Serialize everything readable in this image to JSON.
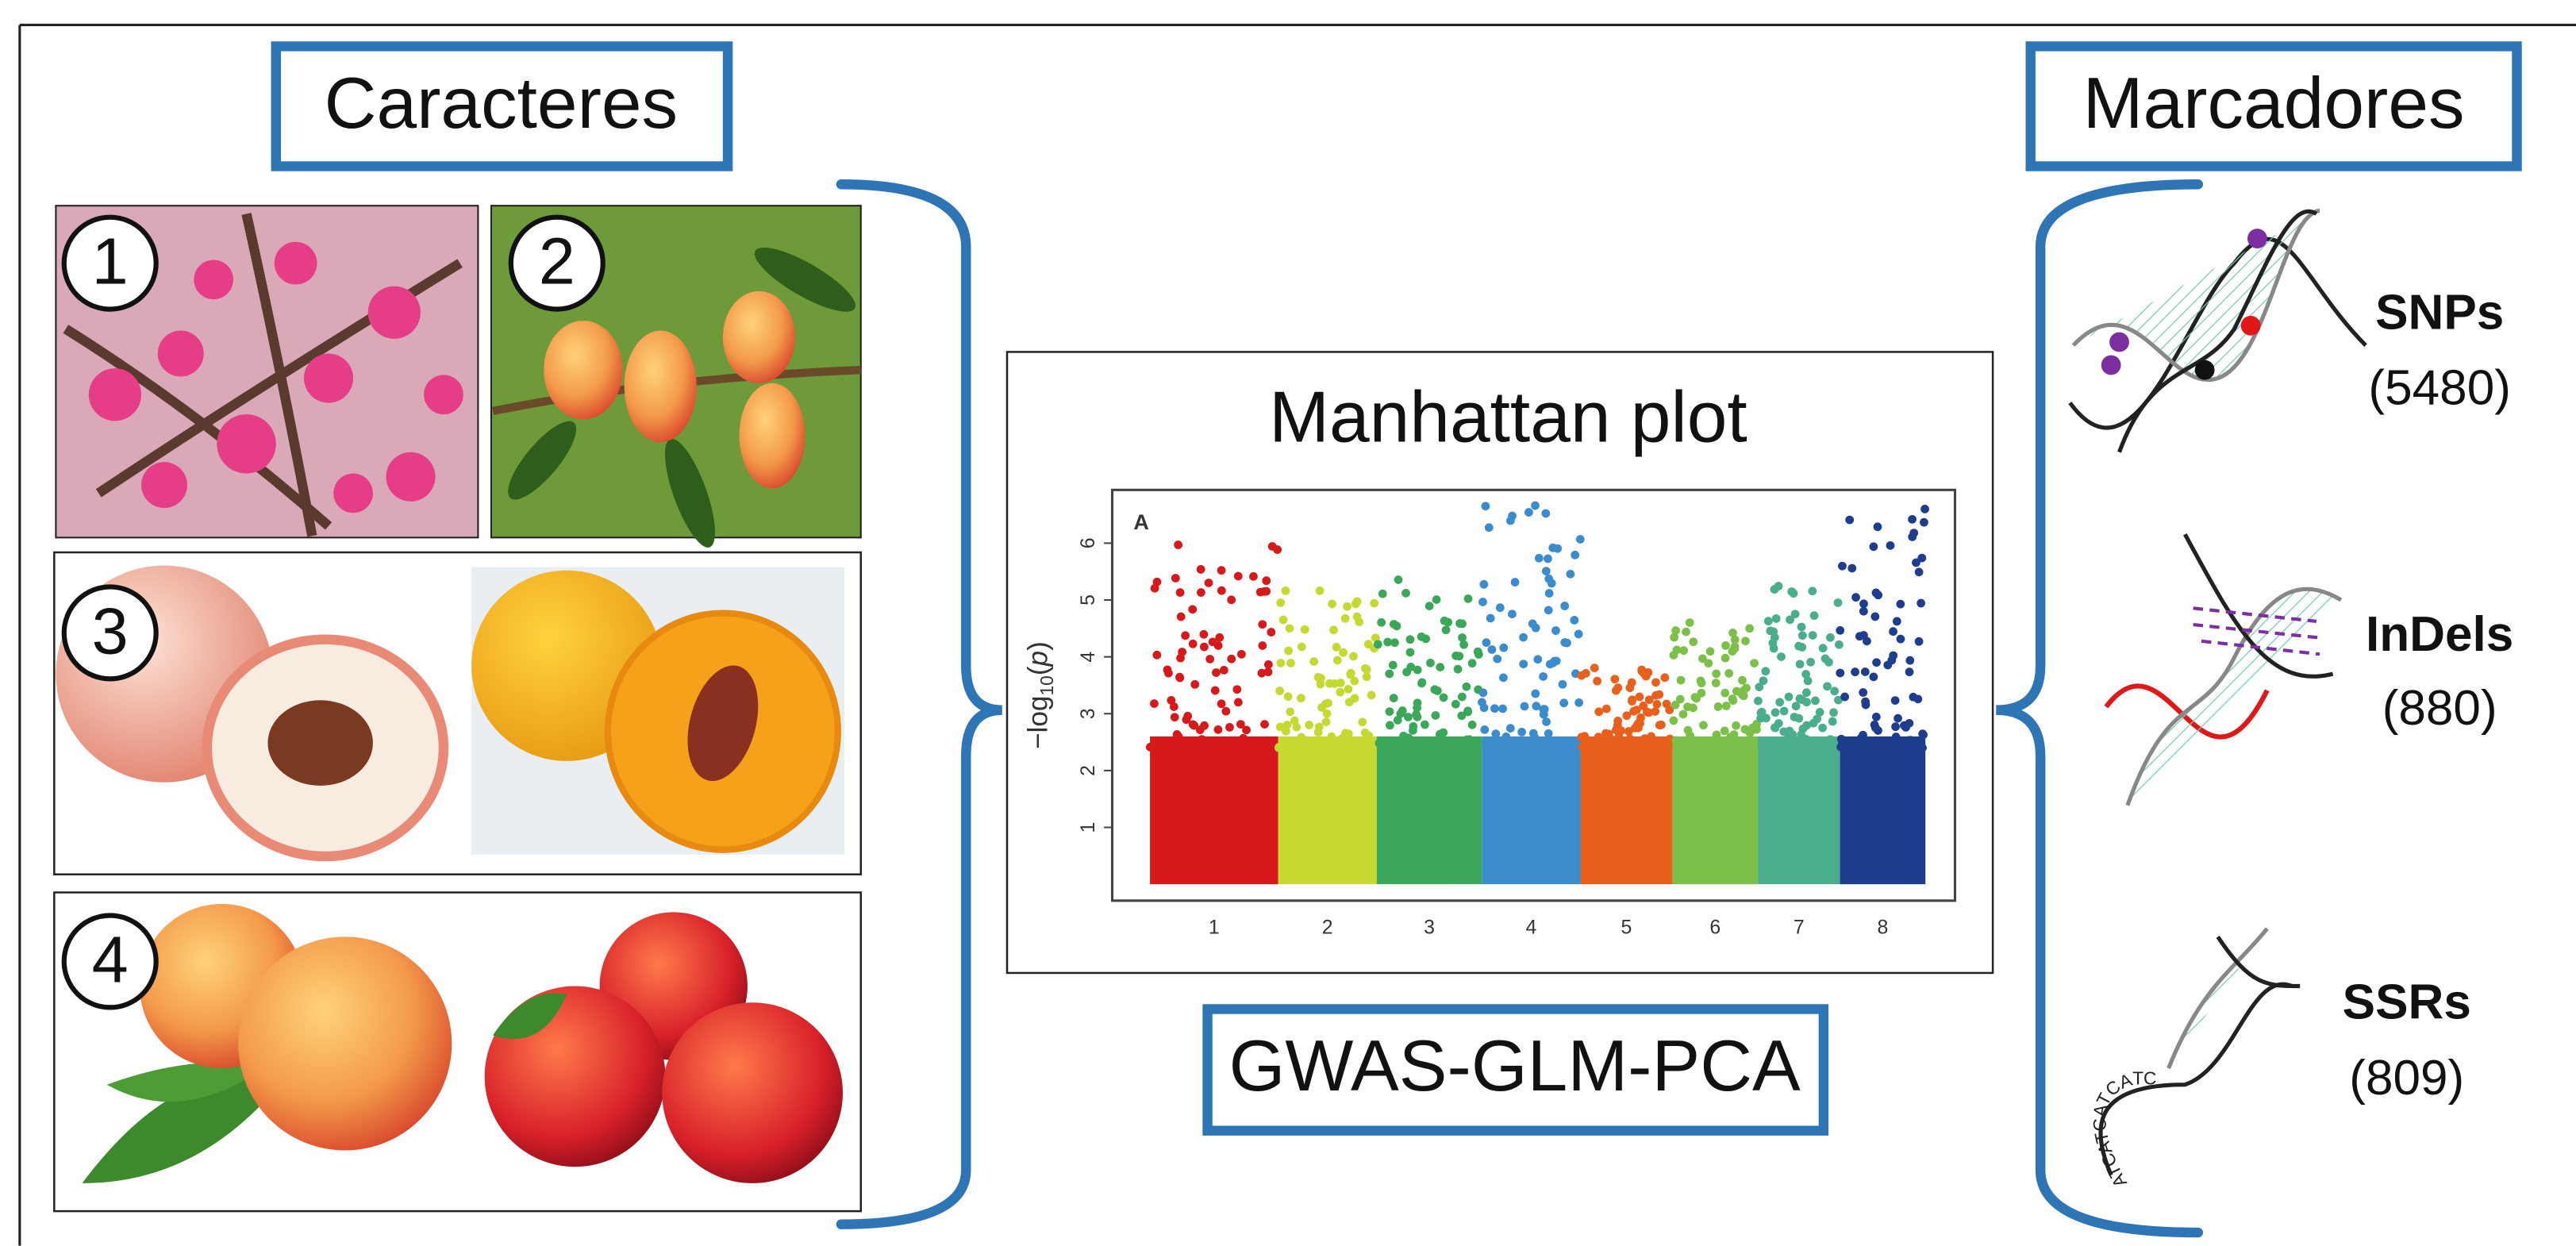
{
  "header": {
    "left_title": "Caracteres",
    "right_title": "Marcadores"
  },
  "traits": [
    {
      "label": "1"
    },
    {
      "label": "2"
    },
    {
      "label": "3"
    },
    {
      "label": "4"
    }
  ],
  "manhattan": {
    "title": "Manhattan plot",
    "panel_label": "A",
    "y_label": {
      "prefix": "−log",
      "subscript": "10",
      "suffix": "p"
    },
    "yticks": [
      1,
      2,
      3,
      4,
      5,
      6
    ],
    "xticks": [
      "1",
      "2",
      "3",
      "4",
      "5",
      "6",
      "7",
      "8"
    ]
  },
  "method": "GWAS-GLM-PCA",
  "markers": [
    {
      "name": "SNPs",
      "count": "(5480)"
    },
    {
      "name": "InDels",
      "count": "(880)"
    },
    {
      "name": "SSRs",
      "count": "(809)"
    }
  ],
  "ssr_sequence": "ATCATCATCATC"
}
